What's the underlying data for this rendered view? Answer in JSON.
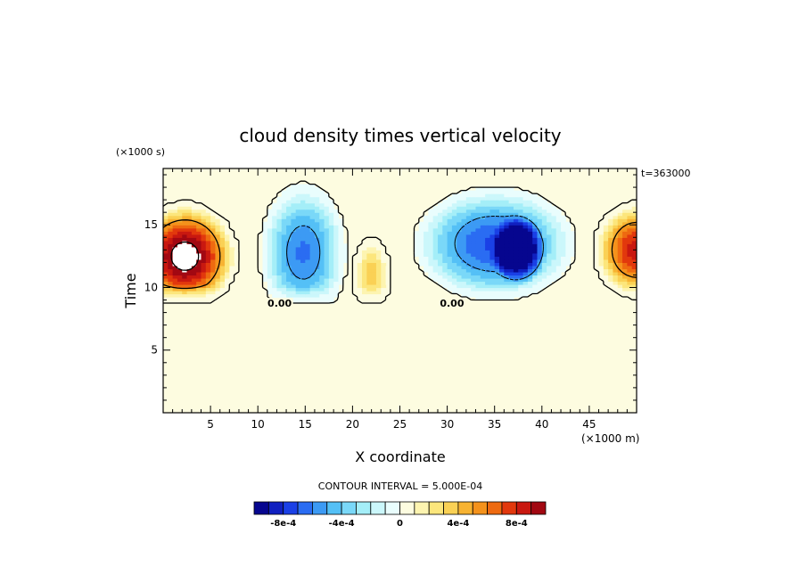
{
  "chart_data": {
    "type": "heatmap",
    "title": "cloud density times vertical velocity",
    "xlabel": "X coordinate",
    "ylabel": "Time",
    "x_unit": "(×1000 m)",
    "y_unit": "(×1000 s)",
    "time_stamp": "t=363000",
    "xlim": [
      0,
      50
    ],
    "ylim": [
      0,
      19.5
    ],
    "x_ticks": [
      5,
      10,
      15,
      20,
      25,
      30,
      35,
      40,
      45
    ],
    "y_ticks": [
      5,
      10,
      15
    ],
    "zero_contour_labels": [
      {
        "text": "0.00",
        "x": 12.3,
        "y": 8.6
      },
      {
        "text": "0.00",
        "x": 30.5,
        "y": 8.6
      }
    ],
    "contour_interval_label": "CONTOUR INTERVAL = 5.000E-04",
    "colorbar": {
      "levels": [
        -0.001,
        -0.0009,
        -0.0008,
        -0.0007,
        -0.0006,
        -0.0005,
        -0.0004,
        -0.0003,
        -0.0002,
        -0.0001,
        0,
        0.0001,
        0.0002,
        0.0003,
        0.0004,
        0.0005,
        0.0006,
        0.0007,
        0.0008,
        0.0009,
        0.001
      ],
      "colors": [
        "#06068f",
        "#1020c0",
        "#1a40e6",
        "#2a6cf2",
        "#3c9af4",
        "#54c0f6",
        "#7ad8f8",
        "#a4eef8",
        "#cbf7fb",
        "#e9fdfd",
        "#fdfce0",
        "#fdf4b0",
        "#fce67c",
        "#fad155",
        "#f7b332",
        "#f4921c",
        "#ee6a10",
        "#e2380d",
        "#c91810",
        "#a20812"
      ],
      "tick_labels": [
        {
          "text": "-8e-4",
          "value": -0.0008
        },
        {
          "text": "-4e-4",
          "value": -0.0004
        },
        {
          "text": "0",
          "value": 0
        },
        {
          "text": "4e-4",
          "value": 0.0004
        },
        {
          "text": "8e-4",
          "value": 0.0008
        }
      ]
    },
    "background_color": "#fdfce0",
    "features": [
      {
        "name": "updraft-left",
        "center_x": 2.3,
        "center_y": 12.5,
        "peak": 0.0011,
        "radius_x": 5.5,
        "radius_y": 4.3,
        "note": "saturated white core"
      },
      {
        "name": "updraft-right",
        "center_x": 50,
        "center_y": 13,
        "peak": 0.00085,
        "radius_x": 4.5,
        "radius_y": 3.8
      },
      {
        "name": "downdraft-center-left",
        "center_x": 14.8,
        "center_y": 12.8,
        "peak": -0.00062,
        "radius_x": 4.5,
        "radius_y": 5.5
      },
      {
        "name": "updraft-small",
        "center_x": 22,
        "center_y": 11,
        "peak": 0.00035,
        "radius_x": 1.8,
        "radius_y": 3
      },
      {
        "name": "downdraft-wide",
        "center_x": 35,
        "center_y": 13.5,
        "peak": -0.00072,
        "radius_x": 8.5,
        "radius_y": 4.5
      },
      {
        "name": "downdraft-core",
        "center_x": 37.5,
        "center_y": 13,
        "peak": -0.00074,
        "radius_x": 3,
        "radius_y": 3
      }
    ]
  }
}
